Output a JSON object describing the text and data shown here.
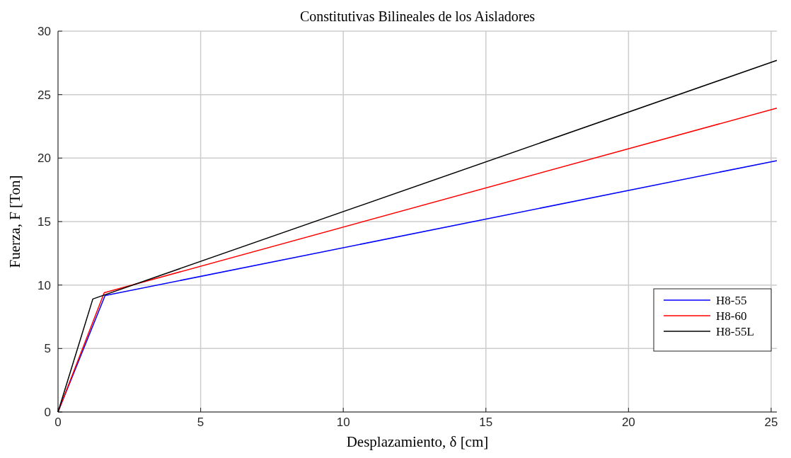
{
  "chart_data": {
    "type": "line",
    "title": "Constitutivas Bilineales de los Aisladores",
    "xlabel": "Desplazamiento, δ [cm]",
    "ylabel": "Fuerza, F [Ton]",
    "xlim": [
      0,
      25.2
    ],
    "ylim": [
      0,
      30
    ],
    "xticks": [
      0,
      5,
      10,
      15,
      20,
      25
    ],
    "yticks": [
      0,
      5,
      10,
      15,
      20,
      25,
      30
    ],
    "grid": true,
    "legend": "bottom right",
    "line_style": "solid",
    "marker": "none",
    "series": [
      {
        "name": "H8-55",
        "color": "#0000ff",
        "x": [
          0,
          1.65,
          25.2
        ],
        "values": [
          0,
          9.17,
          19.8
        ]
      },
      {
        "name": "H8-60",
        "color": "#ff0000",
        "x": [
          0,
          1.62,
          25.2
        ],
        "values": [
          0,
          9.4,
          23.94
        ]
      },
      {
        "name": "H8-55L",
        "color": "#000000",
        "x": [
          0,
          1.22,
          25.2
        ],
        "values": [
          0,
          8.9,
          27.7
        ]
      }
    ]
  }
}
